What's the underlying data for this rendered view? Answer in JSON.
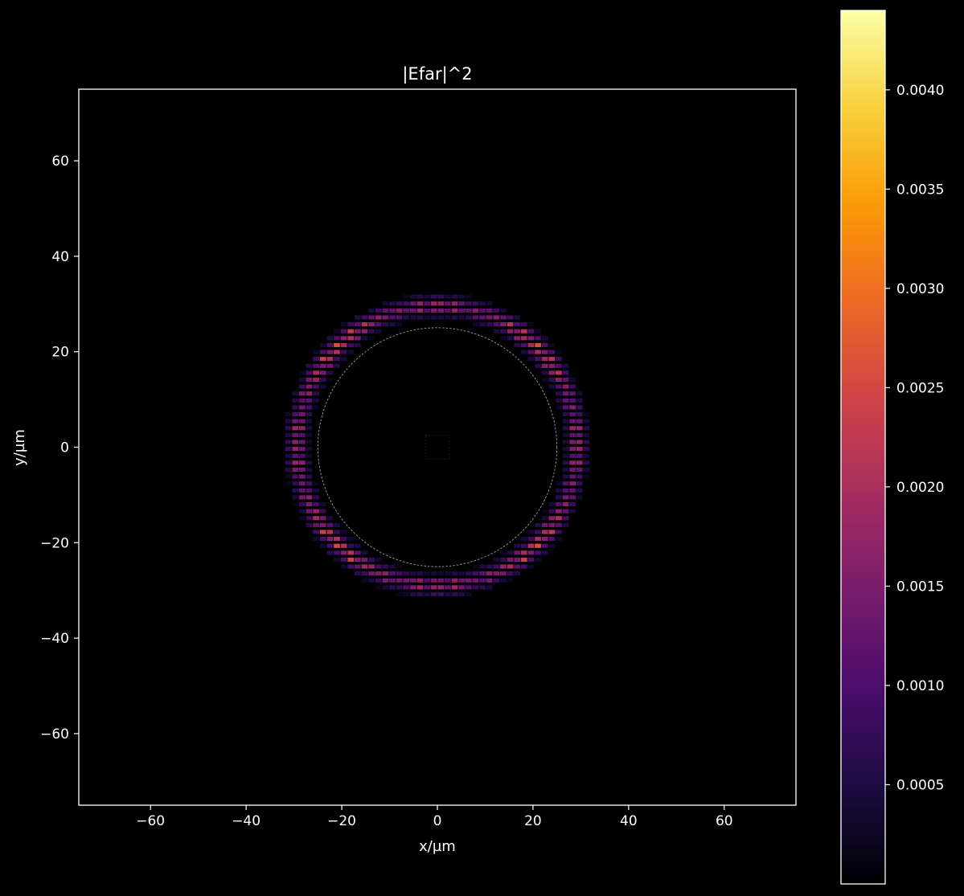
{
  "chart_data": [
    {
      "type": "heatmap",
      "title": "|Efar|^2",
      "xlabel": "x/µm",
      "ylabel": "y/µm",
      "xlim": [
        -75,
        75
      ],
      "ylim": [
        -75,
        75
      ],
      "x_ticks": [
        -60,
        -40,
        -20,
        0,
        20,
        40,
        60
      ],
      "y_ticks": [
        -60,
        -40,
        -20,
        0,
        20,
        40,
        60
      ],
      "x_tick_labels": [
        "−60",
        "−40",
        "−20",
        "0",
        "20",
        "40",
        "60"
      ],
      "y_tick_labels": [
        "−60",
        "−40",
        "−20",
        "0",
        "20",
        "40",
        "60"
      ],
      "grid": false,
      "colormap": "inferno",
      "intensity_ring": {
        "center": [
          0,
          0
        ],
        "peak_radius": 29.3,
        "inner_radius": 26,
        "outer_radius": 34,
        "peak_value": 0.0044,
        "typical_value": 0.002
      },
      "reference_circle": {
        "center": [
          0,
          0
        ],
        "radius": 25,
        "style": "dashed",
        "color": "#a0a0a0"
      },
      "source_box": {
        "x": [
          -2.5,
          2.5
        ],
        "y": [
          -2.5,
          2.5
        ],
        "color": "#1a1a1a"
      },
      "colorbar": {
        "min": 0.0,
        "max": 0.0044,
        "ticks": [
          0.0005,
          0.001,
          0.0015,
          0.002,
          0.0025,
          0.003,
          0.0035,
          0.004
        ],
        "tick_labels": [
          "0.0005",
          "0.0010",
          "0.0015",
          "0.0020",
          "0.0025",
          "0.0030",
          "0.0035",
          "0.0040"
        ]
      }
    }
  ],
  "colors": {
    "background": "#000000",
    "axes_frame": "#ffffff",
    "text": "#ffffff",
    "colormap_stops": [
      "#000004",
      "#1b0c41",
      "#4a0c6b",
      "#781c6d",
      "#a52c60",
      "#cf4446",
      "#ed6925",
      "#fb9b06",
      "#f7d13d",
      "#fcffa4"
    ]
  }
}
